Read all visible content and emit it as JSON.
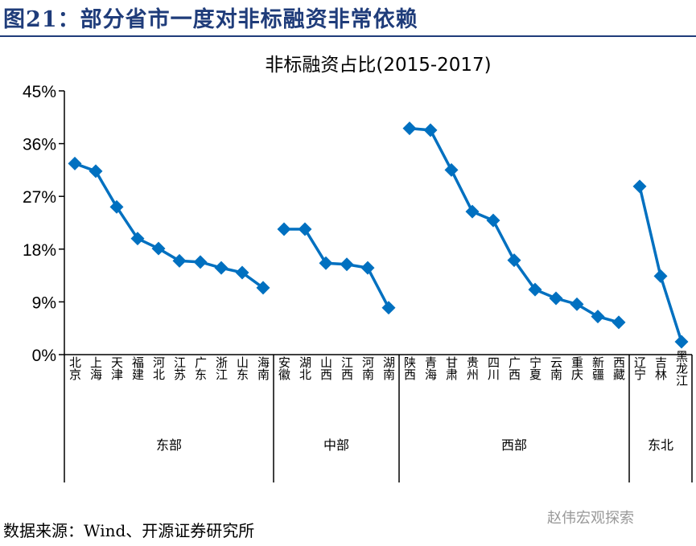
{
  "header": {
    "title": "图21：部分省市一度对非标融资非常依赖"
  },
  "footer": {
    "source": "数据来源：Wind、开源证券研究所",
    "watermark": "赵伟宏观探索"
  },
  "chart_data": {
    "type": "line",
    "title": "非标融资占比(2015-2017)",
    "ylim": [
      0,
      45
    ],
    "yticks": [
      "0%",
      "9%",
      "18%",
      "27%",
      "36%",
      "45%"
    ],
    "grid": false,
    "color": "#0070C0",
    "groups": [
      {
        "name": "东部",
        "categories": [
          "北京",
          "上海",
          "天津",
          "福建",
          "河北",
          "江苏",
          "广东",
          "浙江",
          "山东",
          "海南"
        ],
        "values": [
          32.6,
          31.3,
          25.2,
          19.8,
          18.1,
          16.0,
          15.8,
          14.8,
          14.0,
          11.4
        ]
      },
      {
        "name": "中部",
        "categories": [
          "安徽",
          "湖北",
          "山西",
          "江西",
          "河南",
          "湖南"
        ],
        "values": [
          21.4,
          21.4,
          15.6,
          15.4,
          14.8,
          8.0
        ]
      },
      {
        "name": "西部",
        "categories": [
          "陕西",
          "青海",
          "甘肃",
          "贵州",
          "四川",
          "广西",
          "宁夏",
          "云南",
          "重庆",
          "新疆",
          "西藏"
        ],
        "values": [
          38.6,
          38.3,
          31.5,
          24.4,
          22.9,
          16.1,
          11.1,
          9.6,
          8.6,
          6.5,
          5.5
        ]
      },
      {
        "name": "东北",
        "categories": [
          "辽宁",
          "吉林",
          "黑龙江"
        ],
        "values": [
          28.7,
          13.4,
          2.2
        ]
      }
    ]
  }
}
